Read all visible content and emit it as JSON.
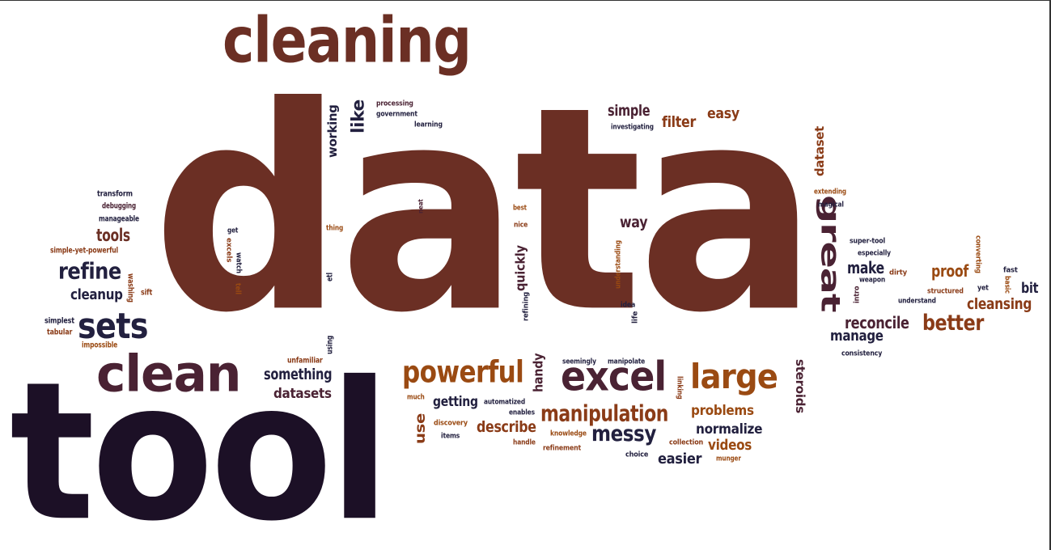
{
  "colors": {
    "brown": "#6b2f24",
    "dark": "#1c1026",
    "plum": "#4a2233",
    "navy": "#22203f",
    "orange": "#9a4a12",
    "rust": "#8a3b17"
  },
  "words": [
    {
      "id": "data",
      "text": "data",
      "color": "brown"
    },
    {
      "id": "tool",
      "text": "tool",
      "color": "dark"
    },
    {
      "id": "cleaning",
      "text": "cleaning",
      "color": "brown"
    },
    {
      "id": "clean",
      "text": "clean",
      "color": "plum"
    },
    {
      "id": "sets",
      "text": "sets",
      "color": "navy"
    },
    {
      "id": "refine",
      "text": "refine",
      "color": "navy"
    },
    {
      "id": "tools",
      "text": "tools",
      "color": "brown"
    },
    {
      "id": "cleanup",
      "text": "cleanup",
      "color": "navy"
    },
    {
      "id": "excel",
      "text": "excel",
      "color": "plum"
    },
    {
      "id": "powerful",
      "text": "powerful",
      "color": "orange"
    },
    {
      "id": "large",
      "text": "large",
      "color": "orange"
    },
    {
      "id": "manipulation",
      "text": "manipulation",
      "color": "rust"
    },
    {
      "id": "messy",
      "text": "messy",
      "color": "navy"
    },
    {
      "id": "great",
      "text": "great",
      "color": "plum"
    },
    {
      "id": "better",
      "text": "better",
      "color": "rust"
    },
    {
      "id": "reconcile",
      "text": "reconcile",
      "color": "plum"
    },
    {
      "id": "manage",
      "text": "manage",
      "color": "navy"
    },
    {
      "id": "cleansing",
      "text": "cleansing",
      "color": "rust"
    },
    {
      "id": "proof",
      "text": "proof",
      "color": "orange"
    },
    {
      "id": "make",
      "text": "make",
      "color": "navy"
    },
    {
      "id": "bit",
      "text": "bit",
      "color": "navy"
    },
    {
      "id": "like",
      "text": "like",
      "color": "navy"
    },
    {
      "id": "working",
      "text": "working",
      "color": "navy"
    },
    {
      "id": "simple",
      "text": "simple",
      "color": "plum"
    },
    {
      "id": "filter",
      "text": "filter",
      "color": "rust"
    },
    {
      "id": "easy",
      "text": "easy",
      "color": "rust"
    },
    {
      "id": "dataset",
      "text": "dataset",
      "color": "rust"
    },
    {
      "id": "way",
      "text": "way",
      "color": "plum"
    },
    {
      "id": "quickly",
      "text": "quickly",
      "color": "plum"
    },
    {
      "id": "handy",
      "text": "handy",
      "color": "plum"
    },
    {
      "id": "something",
      "text": "something",
      "color": "navy"
    },
    {
      "id": "datasets",
      "text": "datasets",
      "color": "plum"
    },
    {
      "id": "getting",
      "text": "getting",
      "color": "navy"
    },
    {
      "id": "use",
      "text": "use",
      "color": "rust"
    },
    {
      "id": "describe",
      "text": "describe",
      "color": "rust"
    },
    {
      "id": "normalize",
      "text": "normalize",
      "color": "navy"
    },
    {
      "id": "problems",
      "text": "problems",
      "color": "orange"
    },
    {
      "id": "videos",
      "text": "videos",
      "color": "orange"
    },
    {
      "id": "easier",
      "text": "easier",
      "color": "navy"
    },
    {
      "id": "steroids",
      "text": "steroids",
      "color": "plum"
    },
    {
      "id": "processing",
      "text": "processing",
      "color": "plum"
    },
    {
      "id": "government",
      "text": "government",
      "color": "navy"
    },
    {
      "id": "learning",
      "text": "learning",
      "color": "navy"
    },
    {
      "id": "investigating",
      "text": "investigating",
      "color": "navy"
    },
    {
      "id": "transform",
      "text": "transform",
      "color": "navy"
    },
    {
      "id": "debugging",
      "text": "debugging",
      "color": "plum"
    },
    {
      "id": "manageable",
      "text": "manageable",
      "color": "navy"
    },
    {
      "id": "simple-yet-powerful",
      "text": "simple-yet-powerful",
      "color": "rust"
    },
    {
      "id": "washing",
      "text": "washing",
      "color": "rust"
    },
    {
      "id": "sift",
      "text": "sift",
      "color": "rust"
    },
    {
      "id": "simplest",
      "text": "simplest",
      "color": "navy"
    },
    {
      "id": "tabular",
      "text": "tabular",
      "color": "rust"
    },
    {
      "id": "impossible",
      "text": "impossible",
      "color": "orange"
    },
    {
      "id": "unfamiliar",
      "text": "unfamiliar",
      "color": "rust"
    },
    {
      "id": "using",
      "text": "using",
      "color": "navy"
    },
    {
      "id": "etl",
      "text": "etl",
      "color": "navy"
    },
    {
      "id": "thing",
      "text": "thing",
      "color": "orange"
    },
    {
      "id": "neat",
      "text": "neat",
      "color": "plum"
    },
    {
      "id": "best",
      "text": "best",
      "color": "orange"
    },
    {
      "id": "nice",
      "text": "nice",
      "color": "rust"
    },
    {
      "id": "refining",
      "text": "refining",
      "color": "navy"
    },
    {
      "id": "get",
      "text": "get",
      "color": "navy"
    },
    {
      "id": "excels",
      "text": "excels",
      "color": "rust"
    },
    {
      "id": "watch",
      "text": "watch",
      "color": "navy"
    },
    {
      "id": "tell",
      "text": "tell",
      "color": "orange"
    },
    {
      "id": "understanding",
      "text": "understanding",
      "color": "orange"
    },
    {
      "id": "idea",
      "text": "idea",
      "color": "navy"
    },
    {
      "id": "life",
      "text": "life",
      "color": "navy"
    },
    {
      "id": "seemingly",
      "text": "seemingly",
      "color": "navy"
    },
    {
      "id": "manipolate",
      "text": "manipolate",
      "color": "navy"
    },
    {
      "id": "linking",
      "text": "linking",
      "color": "rust"
    },
    {
      "id": "much",
      "text": "much",
      "color": "orange"
    },
    {
      "id": "automatized",
      "text": "automatized",
      "color": "navy"
    },
    {
      "id": "enables",
      "text": "enables",
      "color": "navy"
    },
    {
      "id": "discovery",
      "text": "discovery",
      "color": "orange"
    },
    {
      "id": "items",
      "text": "items",
      "color": "navy"
    },
    {
      "id": "handle",
      "text": "handle",
      "color": "rust"
    },
    {
      "id": "knowledge",
      "text": "knowledge",
      "color": "orange"
    },
    {
      "id": "refinement",
      "text": "refinement",
      "color": "rust"
    },
    {
      "id": "collection",
      "text": "collection",
      "color": "rust"
    },
    {
      "id": "choice",
      "text": "choice",
      "color": "navy"
    },
    {
      "id": "munger",
      "text": "munger",
      "color": "orange"
    },
    {
      "id": "extending",
      "text": "extending",
      "color": "orange"
    },
    {
      "id": "magical",
      "text": "magical",
      "color": "navy"
    },
    {
      "id": "super-tool",
      "text": "super-tool",
      "color": "navy"
    },
    {
      "id": "especially",
      "text": "especially",
      "color": "navy"
    },
    {
      "id": "converting",
      "text": "converting",
      "color": "orange"
    },
    {
      "id": "dirty",
      "text": "dirty",
      "color": "rust"
    },
    {
      "id": "weapon",
      "text": "weapon",
      "color": "navy"
    },
    {
      "id": "intro",
      "text": "intro",
      "color": "plum"
    },
    {
      "id": "understand",
      "text": "understand",
      "color": "navy"
    },
    {
      "id": "structured",
      "text": "structured",
      "color": "rust"
    },
    {
      "id": "yet",
      "text": "yet",
      "color": "navy"
    },
    {
      "id": "fast",
      "text": "fast",
      "color": "navy"
    },
    {
      "id": "basic",
      "text": "basic",
      "color": "orange"
    },
    {
      "id": "consistency",
      "text": "consistency",
      "color": "navy"
    }
  ]
}
